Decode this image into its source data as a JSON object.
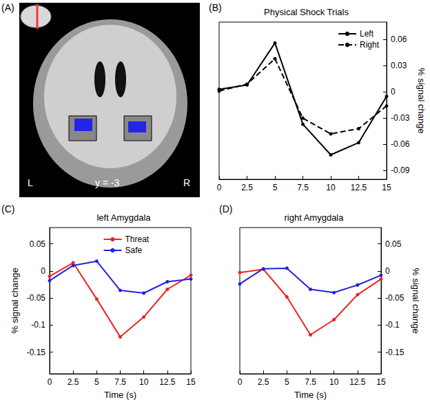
{
  "panel_a": {
    "label": "(A)",
    "texts": {
      "left": "L",
      "slice": "y = -3",
      "right": "R"
    }
  },
  "chart_data": [
    {
      "type": "line",
      "annotations": [
        "(B)"
      ],
      "title": "Physical Shock Trials",
      "ylabel": "% signal change",
      "x": [
        0,
        2.5,
        5,
        7.5,
        10,
        12.5,
        15
      ],
      "series": [
        {
          "name": "Left",
          "color": "#000000",
          "line_style": "solid",
          "marker": "circle",
          "values": [
            0.003,
            0.008,
            0.056,
            -0.037,
            -0.072,
            -0.058,
            -0.005
          ]
        },
        {
          "name": "Right",
          "color": "#000000",
          "line_style": "dashed",
          "marker": "circle",
          "values": [
            0.001,
            0.009,
            0.038,
            -0.03,
            -0.048,
            -0.042,
            -0.016
          ]
        }
      ],
      "xlim": [
        0,
        15
      ],
      "xticks": [
        0,
        2.5,
        5,
        7.5,
        10,
        12.5,
        15
      ],
      "ylim": [
        -0.1,
        0.08
      ],
      "yticks": [
        -0.09,
        -0.06,
        -0.03,
        0,
        0.03,
        0.06
      ],
      "grid": false,
      "legend": "upper right"
    },
    {
      "type": "line",
      "annotations": [
        "(C)"
      ],
      "title": "left Amygdala",
      "xlabel": "Time (s)",
      "ylabel": "% signal change",
      "x": [
        0,
        2.5,
        5,
        7.5,
        10,
        12.5,
        15
      ],
      "series": [
        {
          "name": "Threat",
          "color": "#ee2222",
          "line_style": "solid",
          "marker": "circle",
          "values": [
            -0.01,
            0.015,
            -0.052,
            -0.122,
            -0.085,
            -0.034,
            -0.008
          ]
        },
        {
          "name": "Safe",
          "color": "#2222dd",
          "line_style": "solid",
          "marker": "circle",
          "values": [
            -0.018,
            0.01,
            0.018,
            -0.036,
            -0.041,
            -0.02,
            -0.015
          ]
        }
      ],
      "xlim": [
        0,
        15
      ],
      "xticks": [
        0,
        2.5,
        5,
        7.5,
        10,
        12.5,
        15
      ],
      "ylim": [
        -0.19,
        0.08
      ],
      "yticks": [
        -0.15,
        -0.1,
        -0.05,
        0,
        0.05
      ],
      "grid": false,
      "legend": "upper center"
    },
    {
      "type": "line",
      "annotations": [
        "(D)"
      ],
      "title": "right Amygdala",
      "xlabel": "Time (s)",
      "ylabel": "% signal change",
      "x": [
        0,
        2.5,
        5,
        7.5,
        10,
        12.5,
        15
      ],
      "series": [
        {
          "name": "Threat",
          "color": "#ee2222",
          "line_style": "solid",
          "marker": "circle",
          "values": [
            -0.003,
            0.003,
            -0.048,
            -0.118,
            -0.09,
            -0.044,
            -0.015
          ]
        },
        {
          "name": "Safe",
          "color": "#2222dd",
          "line_style": "solid",
          "marker": "circle",
          "values": [
            -0.024,
            0.004,
            0.005,
            -0.034,
            -0.04,
            -0.026,
            -0.008
          ]
        }
      ],
      "xlim": [
        0,
        15
      ],
      "xticks": [
        0,
        2.5,
        5,
        7.5,
        10,
        12.5,
        15
      ],
      "ylim": [
        -0.19,
        0.08
      ],
      "yticks": [
        -0.15,
        -0.1,
        -0.05,
        0,
        0.05
      ],
      "grid": false
    }
  ]
}
